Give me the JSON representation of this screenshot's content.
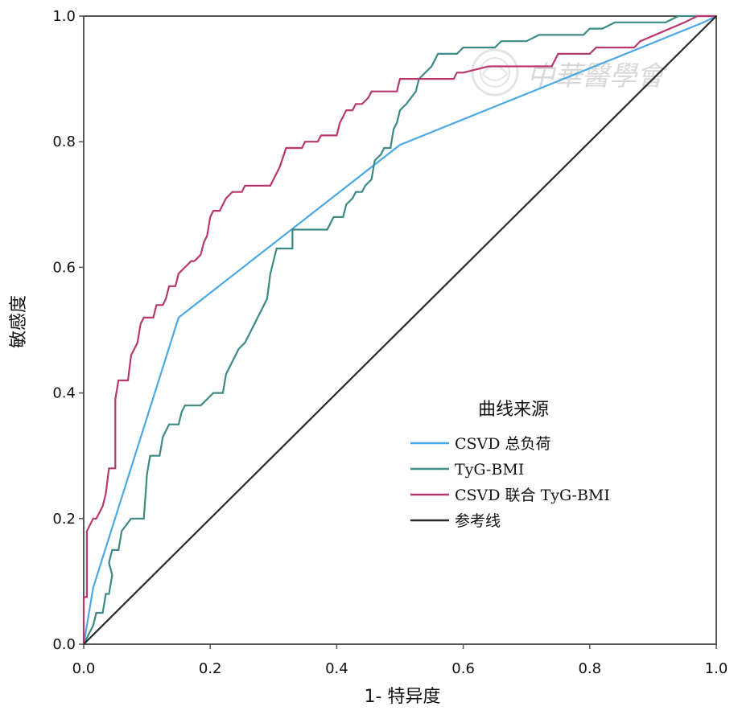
{
  "chart_data": {
    "type": "line",
    "xlabel": "1- 特异度",
    "ylabel": "敏感度",
    "xlim": [
      0.0,
      1.0
    ],
    "ylim": [
      0.0,
      1.0
    ],
    "x_ticks": [
      "0.0",
      "0.2",
      "0.4",
      "0.6",
      "0.8",
      "1.0"
    ],
    "y_ticks": [
      "0.0",
      "0.2",
      "0.4",
      "0.6",
      "0.8",
      "1.0"
    ],
    "legend": {
      "title": "曲线来源",
      "placement": "center-right",
      "entries": [
        "CSVD 总负荷",
        "TyG-BMI",
        "CSVD 联合 TyG-BMI",
        "参考线"
      ]
    },
    "series": [
      {
        "name": "CSVD 总负荷",
        "color": "#4aa8e6",
        "points": [
          [
            0.0,
            0.0
          ],
          [
            0.015,
            0.09
          ],
          [
            0.15,
            0.52
          ],
          [
            0.5,
            0.795
          ],
          [
            0.98,
            0.99
          ],
          [
            1.0,
            1.0
          ]
        ]
      },
      {
        "name": "TyG-BMI",
        "color": "#3b8a83",
        "points": [
          [
            0.0,
            0.0
          ],
          [
            0.015,
            0.03
          ],
          [
            0.02,
            0.05
          ],
          [
            0.03,
            0.05
          ],
          [
            0.035,
            0.08
          ],
          [
            0.04,
            0.08
          ],
          [
            0.045,
            0.11
          ],
          [
            0.04,
            0.13
          ],
          [
            0.045,
            0.15
          ],
          [
            0.055,
            0.15
          ],
          [
            0.06,
            0.18
          ],
          [
            0.075,
            0.2
          ],
          [
            0.095,
            0.2
          ],
          [
            0.1,
            0.27
          ],
          [
            0.105,
            0.3
          ],
          [
            0.12,
            0.3
          ],
          [
            0.125,
            0.33
          ],
          [
            0.135,
            0.35
          ],
          [
            0.15,
            0.35
          ],
          [
            0.155,
            0.37
          ],
          [
            0.16,
            0.38
          ],
          [
            0.185,
            0.38
          ],
          [
            0.205,
            0.4
          ],
          [
            0.22,
            0.4
          ],
          [
            0.225,
            0.43
          ],
          [
            0.235,
            0.45
          ],
          [
            0.245,
            0.47
          ],
          [
            0.255,
            0.48
          ],
          [
            0.26,
            0.49
          ],
          [
            0.27,
            0.51
          ],
          [
            0.275,
            0.52
          ],
          [
            0.285,
            0.54
          ],
          [
            0.29,
            0.55
          ],
          [
            0.295,
            0.59
          ],
          [
            0.3,
            0.61
          ],
          [
            0.305,
            0.63
          ],
          [
            0.33,
            0.63
          ],
          [
            0.33,
            0.66
          ],
          [
            0.385,
            0.66
          ],
          [
            0.39,
            0.67
          ],
          [
            0.395,
            0.68
          ],
          [
            0.41,
            0.68
          ],
          [
            0.415,
            0.7
          ],
          [
            0.425,
            0.71
          ],
          [
            0.43,
            0.72
          ],
          [
            0.44,
            0.72
          ],
          [
            0.445,
            0.73
          ],
          [
            0.455,
            0.74
          ],
          [
            0.46,
            0.77
          ],
          [
            0.47,
            0.78
          ],
          [
            0.475,
            0.79
          ],
          [
            0.485,
            0.79
          ],
          [
            0.49,
            0.82
          ],
          [
            0.495,
            0.83
          ],
          [
            0.5,
            0.85
          ],
          [
            0.51,
            0.86
          ],
          [
            0.525,
            0.88
          ],
          [
            0.53,
            0.9
          ],
          [
            0.55,
            0.92
          ],
          [
            0.56,
            0.94
          ],
          [
            0.59,
            0.94
          ],
          [
            0.6,
            0.95
          ],
          [
            0.65,
            0.95
          ],
          [
            0.66,
            0.96
          ],
          [
            0.7,
            0.96
          ],
          [
            0.72,
            0.97
          ],
          [
            0.79,
            0.97
          ],
          [
            0.8,
            0.98
          ],
          [
            0.82,
            0.98
          ],
          [
            0.84,
            0.99
          ],
          [
            0.92,
            0.99
          ],
          [
            0.94,
            1.0
          ],
          [
            1.0,
            1.0
          ]
        ]
      },
      {
        "name": "CSVD 联合 TyG-BMI",
        "color": "#b8386e",
        "points": [
          [
            0.0,
            0.0
          ],
          [
            0.0,
            0.075
          ],
          [
            0.005,
            0.075
          ],
          [
            0.005,
            0.18
          ],
          [
            0.015,
            0.2
          ],
          [
            0.02,
            0.2
          ],
          [
            0.025,
            0.21
          ],
          [
            0.03,
            0.22
          ],
          [
            0.035,
            0.24
          ],
          [
            0.04,
            0.28
          ],
          [
            0.05,
            0.28
          ],
          [
            0.05,
            0.39
          ],
          [
            0.055,
            0.42
          ],
          [
            0.07,
            0.42
          ],
          [
            0.075,
            0.46
          ],
          [
            0.085,
            0.48
          ],
          [
            0.09,
            0.51
          ],
          [
            0.095,
            0.52
          ],
          [
            0.11,
            0.52
          ],
          [
            0.115,
            0.54
          ],
          [
            0.125,
            0.54
          ],
          [
            0.13,
            0.55
          ],
          [
            0.135,
            0.57
          ],
          [
            0.145,
            0.57
          ],
          [
            0.15,
            0.59
          ],
          [
            0.16,
            0.6
          ],
          [
            0.17,
            0.61
          ],
          [
            0.175,
            0.61
          ],
          [
            0.185,
            0.62
          ],
          [
            0.19,
            0.64
          ],
          [
            0.195,
            0.65
          ],
          [
            0.2,
            0.68
          ],
          [
            0.205,
            0.69
          ],
          [
            0.215,
            0.69
          ],
          [
            0.225,
            0.71
          ],
          [
            0.235,
            0.72
          ],
          [
            0.25,
            0.72
          ],
          [
            0.255,
            0.73
          ],
          [
            0.295,
            0.73
          ],
          [
            0.3,
            0.74
          ],
          [
            0.31,
            0.76
          ],
          [
            0.32,
            0.79
          ],
          [
            0.345,
            0.79
          ],
          [
            0.35,
            0.8
          ],
          [
            0.37,
            0.8
          ],
          [
            0.375,
            0.81
          ],
          [
            0.4,
            0.81
          ],
          [
            0.405,
            0.83
          ],
          [
            0.41,
            0.84
          ],
          [
            0.415,
            0.85
          ],
          [
            0.425,
            0.85
          ],
          [
            0.43,
            0.86
          ],
          [
            0.44,
            0.86
          ],
          [
            0.45,
            0.87
          ],
          [
            0.455,
            0.88
          ],
          [
            0.495,
            0.88
          ],
          [
            0.5,
            0.9
          ],
          [
            0.585,
            0.9
          ],
          [
            0.59,
            0.91
          ],
          [
            0.6,
            0.91
          ],
          [
            0.64,
            0.92
          ],
          [
            0.74,
            0.92
          ],
          [
            0.75,
            0.94
          ],
          [
            0.8,
            0.94
          ],
          [
            0.81,
            0.95
          ],
          [
            0.87,
            0.95
          ],
          [
            0.88,
            0.96
          ],
          [
            0.95,
            0.99
          ],
          [
            0.97,
            1.0
          ],
          [
            1.0,
            1.0
          ]
        ]
      },
      {
        "name": "参考线",
        "color": "#2a2a2a",
        "points": [
          [
            0.0,
            0.0
          ],
          [
            1.0,
            1.0
          ]
        ]
      }
    ]
  },
  "watermark": {
    "text": "中華醫學會",
    "emblem": "seal-icon"
  }
}
